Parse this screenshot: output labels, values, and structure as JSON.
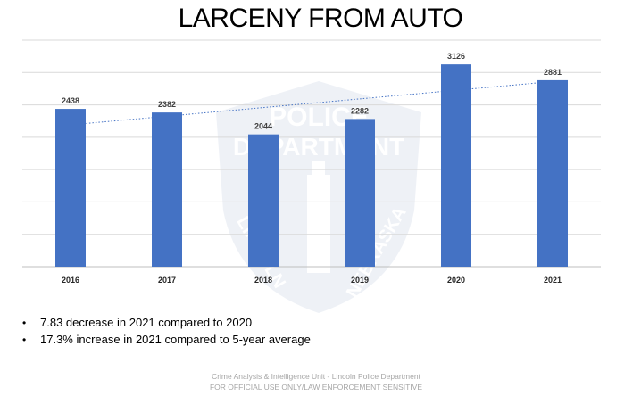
{
  "chart_data": {
    "type": "bar",
    "title": "LARCENY FROM AUTO",
    "categories": [
      "2016",
      "2017",
      "2018",
      "2019",
      "2020",
      "2021"
    ],
    "series": [
      {
        "values": [
          2438,
          2382,
          2044,
          2282,
          3126,
          2881
        ]
      }
    ],
    "trendline": "linear",
    "ylim": [
      0,
      3500
    ],
    "grid": true,
    "bar_color": "#4472c4",
    "trend_color": "#4472c4",
    "xlabel": "",
    "ylabel": ""
  },
  "bullets": [
    "7.83 decrease in 2021 compared to 2020",
    "17.3% increase in 2021 compared to 5-year average"
  ],
  "footer": {
    "line1": "Crime Analysis & Intelligence Unit - Lincoln Police Department",
    "line2": "FOR OFFICIAL USE ONLY/LAW ENFORCEMENT SENSITIVE"
  },
  "watermark": {
    "line1": "POLICE",
    "line2": "DEPARTMENT",
    "left_text": "LINCOLN",
    "right_text": "NEBRASKA"
  }
}
